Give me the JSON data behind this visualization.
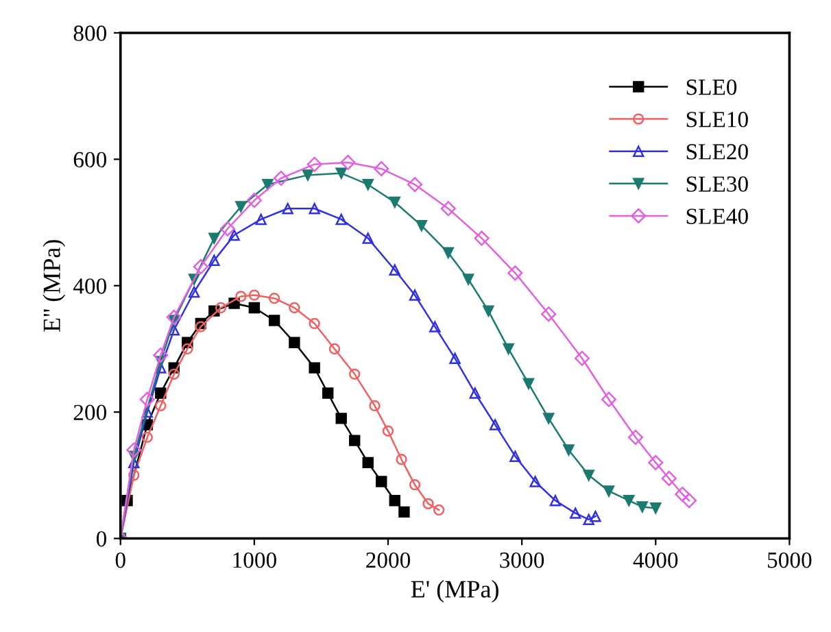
{
  "chart_data": {
    "type": "line",
    "xlabel": "E' (MPa)",
    "ylabel": "E'' (MPa)",
    "xlim": [
      0,
      5000
    ],
    "xticks": [
      0,
      1000,
      2000,
      3000,
      4000,
      5000
    ],
    "ylim": [
      0,
      800
    ],
    "yticks": [
      0,
      200,
      400,
      600,
      800
    ],
    "grid": false,
    "legend": "top right",
    "line_style": "solid",
    "series": [
      {
        "name": "SLE0",
        "color": "#000000",
        "marker": "square",
        "x": [
          0,
          50,
          200,
          300,
          400,
          500,
          600,
          700,
          850,
          1000,
          1150,
          1300,
          1450,
          1550,
          1650,
          1750,
          1850,
          1950,
          2050,
          2120
        ],
        "values": [
          0,
          60,
          180,
          230,
          270,
          310,
          340,
          360,
          372,
          365,
          345,
          310,
          270,
          230,
          190,
          155,
          120,
          90,
          60,
          42
        ]
      },
      {
        "name": "SLE10",
        "color": "#f06060",
        "marker": "circle",
        "x": [
          0,
          100,
          200,
          300,
          400,
          500,
          600,
          750,
          900,
          1000,
          1150,
          1300,
          1450,
          1600,
          1750,
          1900,
          2000,
          2100,
          2200,
          2300,
          2380
        ],
        "values": [
          0,
          100,
          160,
          210,
          260,
          300,
          335,
          365,
          383,
          385,
          380,
          365,
          340,
          300,
          260,
          210,
          170,
          125,
          85,
          55,
          45
        ]
      },
      {
        "name": "SLE20",
        "color": "#3030e0",
        "marker": "triangle",
        "x": [
          0,
          100,
          200,
          300,
          400,
          550,
          700,
          850,
          1050,
          1250,
          1450,
          1650,
          1850,
          2050,
          2200,
          2350,
          2500,
          2650,
          2800,
          2950,
          3100,
          3250,
          3400,
          3500,
          3550
        ],
        "values": [
          0,
          120,
          200,
          270,
          330,
          390,
          440,
          480,
          505,
          522,
          522,
          505,
          475,
          425,
          385,
          335,
          285,
          230,
          180,
          130,
          90,
          60,
          40,
          30,
          35
        ]
      },
      {
        "name": "SLE30",
        "color": "#1a7a70",
        "marker": "triangle_down",
        "x": [
          0,
          100,
          300,
          400,
          550,
          700,
          900,
          1100,
          1400,
          1650,
          1850,
          2050,
          2250,
          2450,
          2600,
          2750,
          2900,
          3050,
          3200,
          3350,
          3500,
          3650,
          3800,
          3900,
          4000
        ],
        "values": [
          0,
          130,
          280,
          345,
          410,
          475,
          525,
          560,
          575,
          578,
          560,
          532,
          495,
          452,
          410,
          360,
          300,
          245,
          190,
          140,
          100,
          75,
          60,
          50,
          48
        ]
      },
      {
        "name": "SLE40",
        "color": "#e060e0",
        "marker": "diamond",
        "x": [
          0,
          100,
          200,
          300,
          400,
          600,
          800,
          1000,
          1200,
          1450,
          1700,
          1950,
          2200,
          2450,
          2700,
          2950,
          3200,
          3450,
          3650,
          3850,
          4000,
          4100,
          4200,
          4250
        ],
        "values": [
          0,
          140,
          220,
          290,
          350,
          430,
          490,
          535,
          570,
          592,
          595,
          585,
          560,
          522,
          475,
          420,
          355,
          285,
          220,
          160,
          120,
          95,
          70,
          60
        ]
      }
    ]
  }
}
